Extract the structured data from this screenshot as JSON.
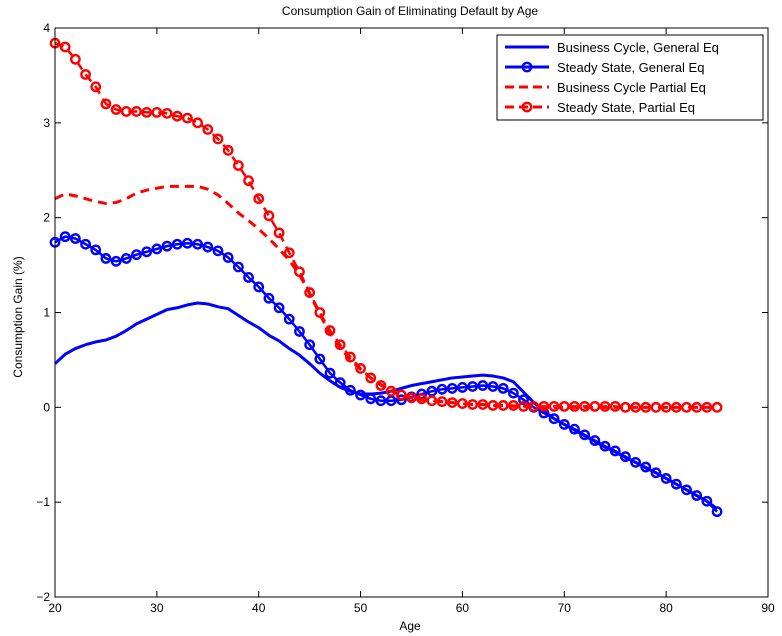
{
  "chart_data": {
    "type": "line",
    "title": "Consumption Gain of Eliminating Default by Age",
    "xlabel": "Age",
    "ylabel": "Consumption Gain (%)",
    "xlim": [
      20,
      90
    ],
    "ylim": [
      -2,
      4
    ],
    "xticks": [
      20,
      30,
      40,
      50,
      60,
      70,
      80,
      90
    ],
    "yticks": [
      -2,
      -1,
      0,
      1,
      2,
      3,
      4
    ],
    "ytick_labels": [
      "−2",
      "−1",
      "0",
      "1",
      "2",
      "3",
      "4"
    ],
    "legend_position": "top-right",
    "grid": false,
    "series": [
      {
        "name": "Business Cycle, General Eq",
        "color": "#0000ff",
        "style": "solid",
        "marker": "none",
        "x": [
          20,
          21,
          22,
          23,
          24,
          25,
          26,
          27,
          28,
          29,
          30,
          31,
          32,
          33,
          34,
          35,
          36,
          37,
          38,
          39,
          40,
          41,
          42,
          43,
          44,
          45,
          46,
          47,
          48,
          49,
          50,
          51,
          52,
          53,
          54,
          55,
          56,
          57,
          58,
          59,
          60,
          61,
          62,
          63,
          64,
          65,
          66,
          67,
          68,
          69,
          70,
          71,
          72,
          73,
          74,
          75,
          76,
          77,
          78,
          79,
          80,
          81,
          82,
          83,
          84,
          85
        ],
        "y": [
          0.46,
          0.56,
          0.62,
          0.66,
          0.69,
          0.71,
          0.75,
          0.81,
          0.88,
          0.93,
          0.98,
          1.03,
          1.05,
          1.08,
          1.1,
          1.09,
          1.06,
          1.04,
          0.97,
          0.9,
          0.84,
          0.76,
          0.7,
          0.62,
          0.55,
          0.46,
          0.36,
          0.28,
          0.21,
          0.17,
          0.14,
          0.14,
          0.15,
          0.17,
          0.2,
          0.23,
          0.25,
          0.27,
          0.29,
          0.31,
          0.32,
          0.33,
          0.34,
          0.33,
          0.31,
          0.27,
          0.16,
          0.05,
          -0.04,
          -0.12,
          -0.18,
          -0.24,
          -0.3,
          -0.36,
          -0.42,
          -0.47,
          -0.53,
          -0.58,
          -0.64,
          -0.69,
          -0.75,
          -0.81,
          -0.87,
          -0.93,
          -0.99,
          -1.07
        ]
      },
      {
        "name": "Steady State, General Eq",
        "color": "#0000ff",
        "style": "solid",
        "marker": "circle",
        "x": [
          20,
          21,
          22,
          23,
          24,
          25,
          26,
          27,
          28,
          29,
          30,
          31,
          32,
          33,
          34,
          35,
          36,
          37,
          38,
          39,
          40,
          41,
          42,
          43,
          44,
          45,
          46,
          47,
          48,
          49,
          50,
          51,
          52,
          53,
          54,
          55,
          56,
          57,
          58,
          59,
          60,
          61,
          62,
          63,
          64,
          65,
          66,
          67,
          68,
          69,
          70,
          71,
          72,
          73,
          74,
          75,
          76,
          77,
          78,
          79,
          80,
          81,
          82,
          83,
          84,
          85
        ],
        "y": [
          1.74,
          1.8,
          1.78,
          1.72,
          1.66,
          1.57,
          1.54,
          1.57,
          1.61,
          1.64,
          1.67,
          1.7,
          1.72,
          1.73,
          1.72,
          1.69,
          1.65,
          1.58,
          1.48,
          1.37,
          1.27,
          1.15,
          1.05,
          0.93,
          0.8,
          0.66,
          0.51,
          0.36,
          0.26,
          0.18,
          0.13,
          0.09,
          0.07,
          0.07,
          0.08,
          0.11,
          0.14,
          0.17,
          0.19,
          0.2,
          0.21,
          0.22,
          0.23,
          0.22,
          0.2,
          0.15,
          0.08,
          0.0,
          -0.06,
          -0.12,
          -0.18,
          -0.23,
          -0.29,
          -0.35,
          -0.41,
          -0.46,
          -0.52,
          -0.58,
          -0.63,
          -0.69,
          -0.75,
          -0.81,
          -0.87,
          -0.93,
          -0.99,
          -1.1
        ]
      },
      {
        "name": "Business Cycle Partial Eq",
        "color": "#ff0000",
        "style": "dashed",
        "marker": "none",
        "x": [
          20,
          21,
          22,
          23,
          24,
          25,
          26,
          27,
          28,
          29,
          30,
          31,
          32,
          33,
          34,
          35,
          36,
          37,
          38,
          39,
          40,
          41,
          42,
          43,
          44,
          45,
          46,
          47,
          48,
          49,
          50,
          51,
          52,
          53,
          54,
          55,
          56,
          57,
          58,
          59,
          60,
          61,
          62,
          63,
          64,
          65,
          66,
          67,
          68,
          69,
          70,
          71,
          72,
          73,
          74,
          75,
          76,
          77,
          78,
          79,
          80,
          81,
          82,
          83,
          84,
          85
        ],
        "y": [
          2.2,
          2.25,
          2.23,
          2.2,
          2.17,
          2.15,
          2.16,
          2.2,
          2.26,
          2.29,
          2.31,
          2.33,
          2.33,
          2.33,
          2.33,
          2.3,
          2.24,
          2.15,
          2.05,
          1.97,
          1.88,
          1.78,
          1.67,
          1.55,
          1.4,
          1.2,
          0.98,
          0.78,
          0.63,
          0.5,
          0.4,
          0.31,
          0.24,
          0.18,
          0.13,
          0.1,
          0.08,
          0.07,
          0.06,
          0.05,
          0.04,
          0.03,
          0.03,
          0.02,
          0.02,
          0.01,
          0.01,
          0.01,
          0.0,
          0.0,
          0.0,
          0.0,
          0.0,
          0.0,
          0.0,
          0.0,
          0.0,
          0.0,
          0.0,
          0.0,
          0.0,
          0.0,
          0.0,
          0.0,
          0.0,
          0.0
        ]
      },
      {
        "name": "Steady State, Partial Eq",
        "color": "#ff0000",
        "style": "dashed",
        "marker": "circle",
        "x": [
          20,
          21,
          22,
          23,
          24,
          25,
          26,
          27,
          28,
          29,
          30,
          31,
          32,
          33,
          34,
          35,
          36,
          37,
          38,
          39,
          40,
          41,
          42,
          43,
          44,
          45,
          46,
          47,
          48,
          49,
          50,
          51,
          52,
          53,
          54,
          55,
          56,
          57,
          58,
          59,
          60,
          61,
          62,
          63,
          64,
          65,
          66,
          67,
          68,
          69,
          70,
          71,
          72,
          73,
          74,
          75,
          76,
          77,
          78,
          79,
          80,
          81,
          82,
          83,
          84,
          85
        ],
        "y": [
          3.84,
          3.8,
          3.67,
          3.51,
          3.38,
          3.2,
          3.14,
          3.12,
          3.12,
          3.11,
          3.11,
          3.1,
          3.07,
          3.05,
          3.0,
          2.93,
          2.83,
          2.71,
          2.55,
          2.39,
          2.2,
          2.02,
          1.84,
          1.63,
          1.43,
          1.21,
          1.0,
          0.81,
          0.66,
          0.53,
          0.41,
          0.31,
          0.23,
          0.17,
          0.13,
          0.1,
          0.09,
          0.07,
          0.06,
          0.05,
          0.04,
          0.03,
          0.03,
          0.02,
          0.02,
          0.02,
          0.01,
          0.01,
          0.01,
          0.01,
          0.01,
          0.01,
          0.01,
          0.01,
          0.01,
          0.01,
          0.0,
          0.0,
          0.0,
          0.0,
          0.0,
          0.0,
          0.0,
          0.0,
          0.0,
          0.0
        ]
      }
    ]
  }
}
